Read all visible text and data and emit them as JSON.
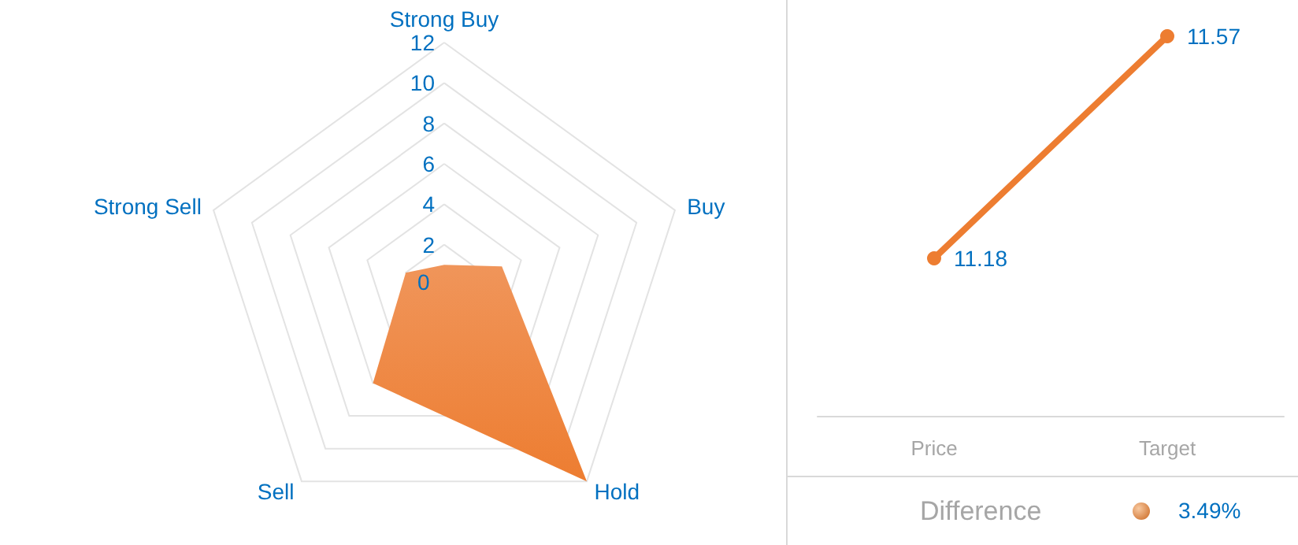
{
  "chart_data": [
    {
      "type": "radar",
      "categories": [
        "Strong Buy",
        "Buy",
        "Hold",
        "Sell",
        "Strong Sell"
      ],
      "series": [
        {
          "color": "#ed7d31",
          "values": [
            1,
            3,
            12,
            6,
            2
          ]
        }
      ],
      "ylim": [
        0,
        12
      ],
      "yticks": [
        0,
        2,
        4,
        6,
        8,
        10,
        12
      ]
    },
    {
      "type": "line",
      "categories": [
        "Price",
        "Target"
      ],
      "series": [
        {
          "color": "#ed7d31",
          "values": [
            11.18,
            11.57
          ]
        }
      ],
      "data_labels": true,
      "marker": "circle",
      "annotations": [
        "Difference",
        "3.49%"
      ]
    }
  ]
}
